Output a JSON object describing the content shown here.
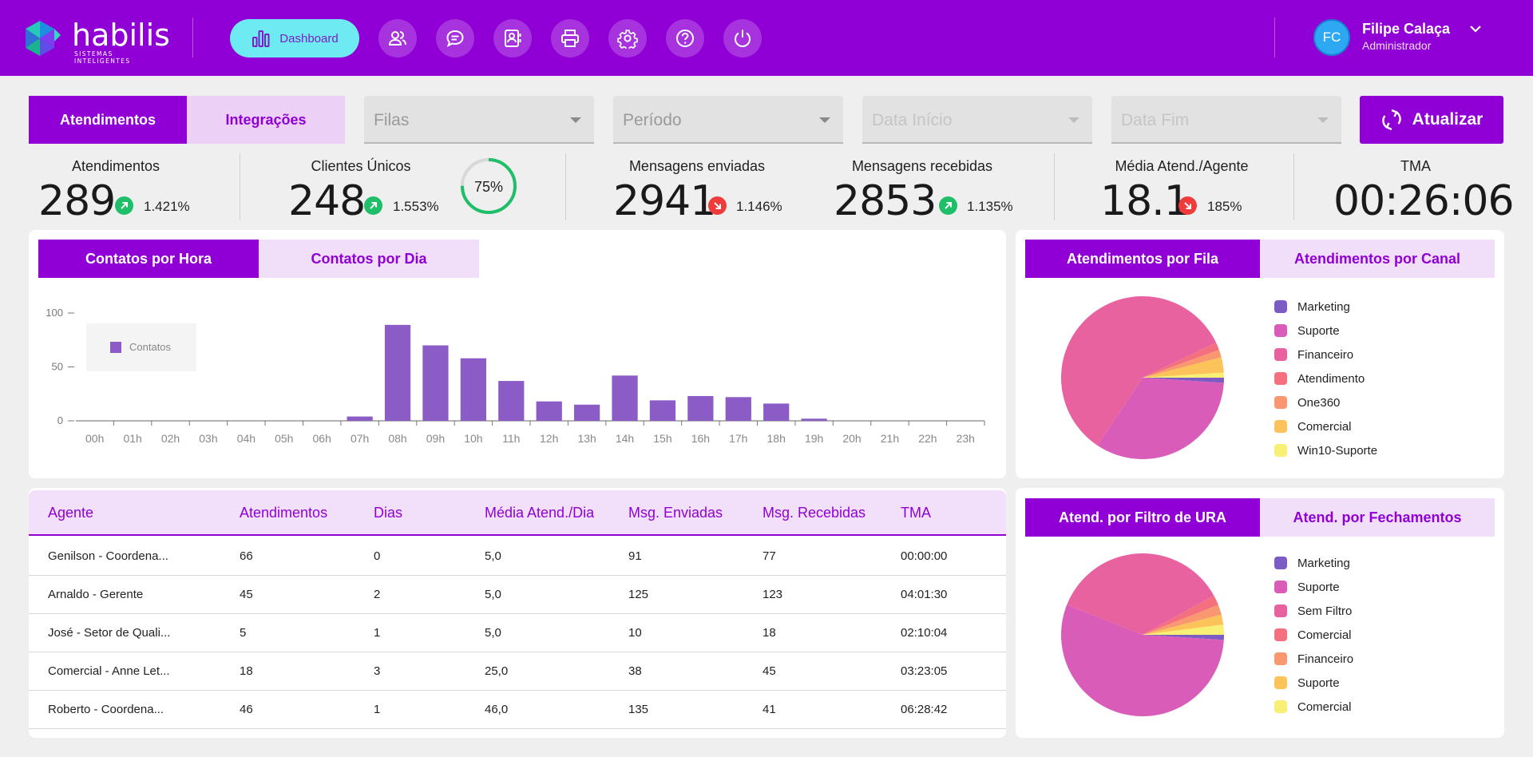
{
  "brand": {
    "name": "habilis",
    "tagline": "SISTEMAS INTELIGENTES",
    "colors": {
      "primary": "#9000d6",
      "accent": "#6eeaf2",
      "light": "#f1def8"
    }
  },
  "nav": {
    "dashboard_label": "Dashboard",
    "icons": [
      "dashboard-icon",
      "users-icon",
      "chat-icon",
      "contacts-icon",
      "print-icon",
      "gear-icon",
      "help-icon",
      "power-icon"
    ]
  },
  "user": {
    "initials": "FC",
    "name": "Filipe Calaça",
    "role": "Administrador"
  },
  "filters": {
    "tabs": [
      {
        "label": "Atendimentos",
        "active": true
      },
      {
        "label": "Integrações",
        "active": false
      }
    ],
    "selects": [
      {
        "label": "Filas",
        "enabled": true
      },
      {
        "label": "Período",
        "enabled": true
      },
      {
        "label": "Data Início",
        "enabled": false
      },
      {
        "label": "Data Fim",
        "enabled": false
      }
    ],
    "update_label": "Atualizar"
  },
  "kpis": [
    {
      "title": "Atendimentos",
      "value": "289",
      "trend": "up",
      "pct": "1.421%"
    },
    {
      "title": "Clientes Únicos",
      "value": "248",
      "trend": "up",
      "pct": "1.553%",
      "gauge": "75%",
      "gauge_fraction": 0.75
    },
    {
      "title": "Mensagens enviadas",
      "value": "2941",
      "trend": "down",
      "pct": "1.146%"
    },
    {
      "title": "Mensagens recebidas",
      "value": "2853",
      "trend": "up",
      "pct": "1.135%"
    },
    {
      "title": "Média Atend./Agente",
      "value": "18.1",
      "trend": "down",
      "pct": "185%"
    },
    {
      "title": "TMA",
      "value": "00:26:06"
    }
  ],
  "contacts_card": {
    "tabs": [
      {
        "label": "Contatos por Hora",
        "active": true
      },
      {
        "label": "Contatos por Dia",
        "active": false
      }
    ]
  },
  "queue_card": {
    "tabs": [
      {
        "label": "Atendimentos por Fila",
        "active": true
      },
      {
        "label": "Atendimentos por Canal",
        "active": false
      }
    ]
  },
  "ura_card": {
    "tabs": [
      {
        "label": "Atend. por Filtro de URA",
        "active": true
      },
      {
        "label": "Atend. por Fechamentos",
        "active": false
      }
    ]
  },
  "chart_data": [
    {
      "type": "bar",
      "categories": [
        "00h",
        "01h",
        "02h",
        "03h",
        "04h",
        "05h",
        "06h",
        "07h",
        "08h",
        "09h",
        "10h",
        "11h",
        "12h",
        "13h",
        "14h",
        "15h",
        "16h",
        "17h",
        "18h",
        "19h",
        "20h",
        "21h",
        "22h",
        "23h"
      ],
      "series": [
        {
          "name": "Contatos",
          "color": "#8b5cc6",
          "values": [
            0,
            0,
            0,
            0,
            0,
            0,
            0,
            4,
            89,
            70,
            58,
            37,
            18,
            15,
            42,
            19,
            23,
            22,
            16,
            2,
            0,
            0,
            0,
            0
          ]
        }
      ],
      "yticks": [
        "0",
        "50",
        "100"
      ],
      "ylim": [
        0,
        100
      ],
      "legend": "top-left"
    },
    {
      "type": "pie",
      "labels": [
        "Marketing",
        "Suporte",
        "Financeiro",
        "Atendimento",
        "One360",
        "Comercial",
        "Win10-Suporte"
      ],
      "colors": [
        "#7c5cc4",
        "#d85cb8",
        "#e862a0",
        "#f4707f",
        "#f99870",
        "#fcc35a",
        "#f7f074"
      ],
      "values": [
        1,
        33,
        58,
        1.5,
        1.5,
        3,
        1
      ],
      "legend": "right"
    },
    {
      "type": "pie",
      "labels": [
        "Marketing",
        "Suporte",
        "Sem Filtro",
        "Comercial",
        "Financeiro",
        "Suporte",
        "Comercial"
      ],
      "colors": [
        "#7c5cc4",
        "#d85cb8",
        "#e862a0",
        "#f4707f",
        "#f99870",
        "#fcc35a",
        "#f7f074"
      ],
      "values": [
        1,
        55,
        36,
        2,
        2,
        2,
        2
      ],
      "legend": "right"
    }
  ],
  "agents_table": {
    "columns": [
      "Agente",
      "Atendimentos",
      "Dias",
      "Média Atend./Dia",
      "Msg. Enviadas",
      "Msg. Recebidas",
      "TMA"
    ],
    "rows": [
      [
        "Genilson - Coordena...",
        "66",
        "0",
        "5,0",
        "91",
        "77",
        "00:00:00"
      ],
      [
        "Arnaldo - Gerente",
        "45",
        "2",
        "5,0",
        "125",
        "123",
        "04:01:30"
      ],
      [
        "José - Setor de Quali...",
        "5",
        "1",
        "5,0",
        "10",
        "18",
        "02:10:04"
      ],
      [
        "Comercial - Anne Let...",
        "18",
        "3",
        "25,0",
        "38",
        "45",
        "03:23:05"
      ],
      [
        "Roberto - Coordena...",
        "46",
        "1",
        "46,0",
        "135",
        "41",
        "06:28:42"
      ]
    ]
  }
}
